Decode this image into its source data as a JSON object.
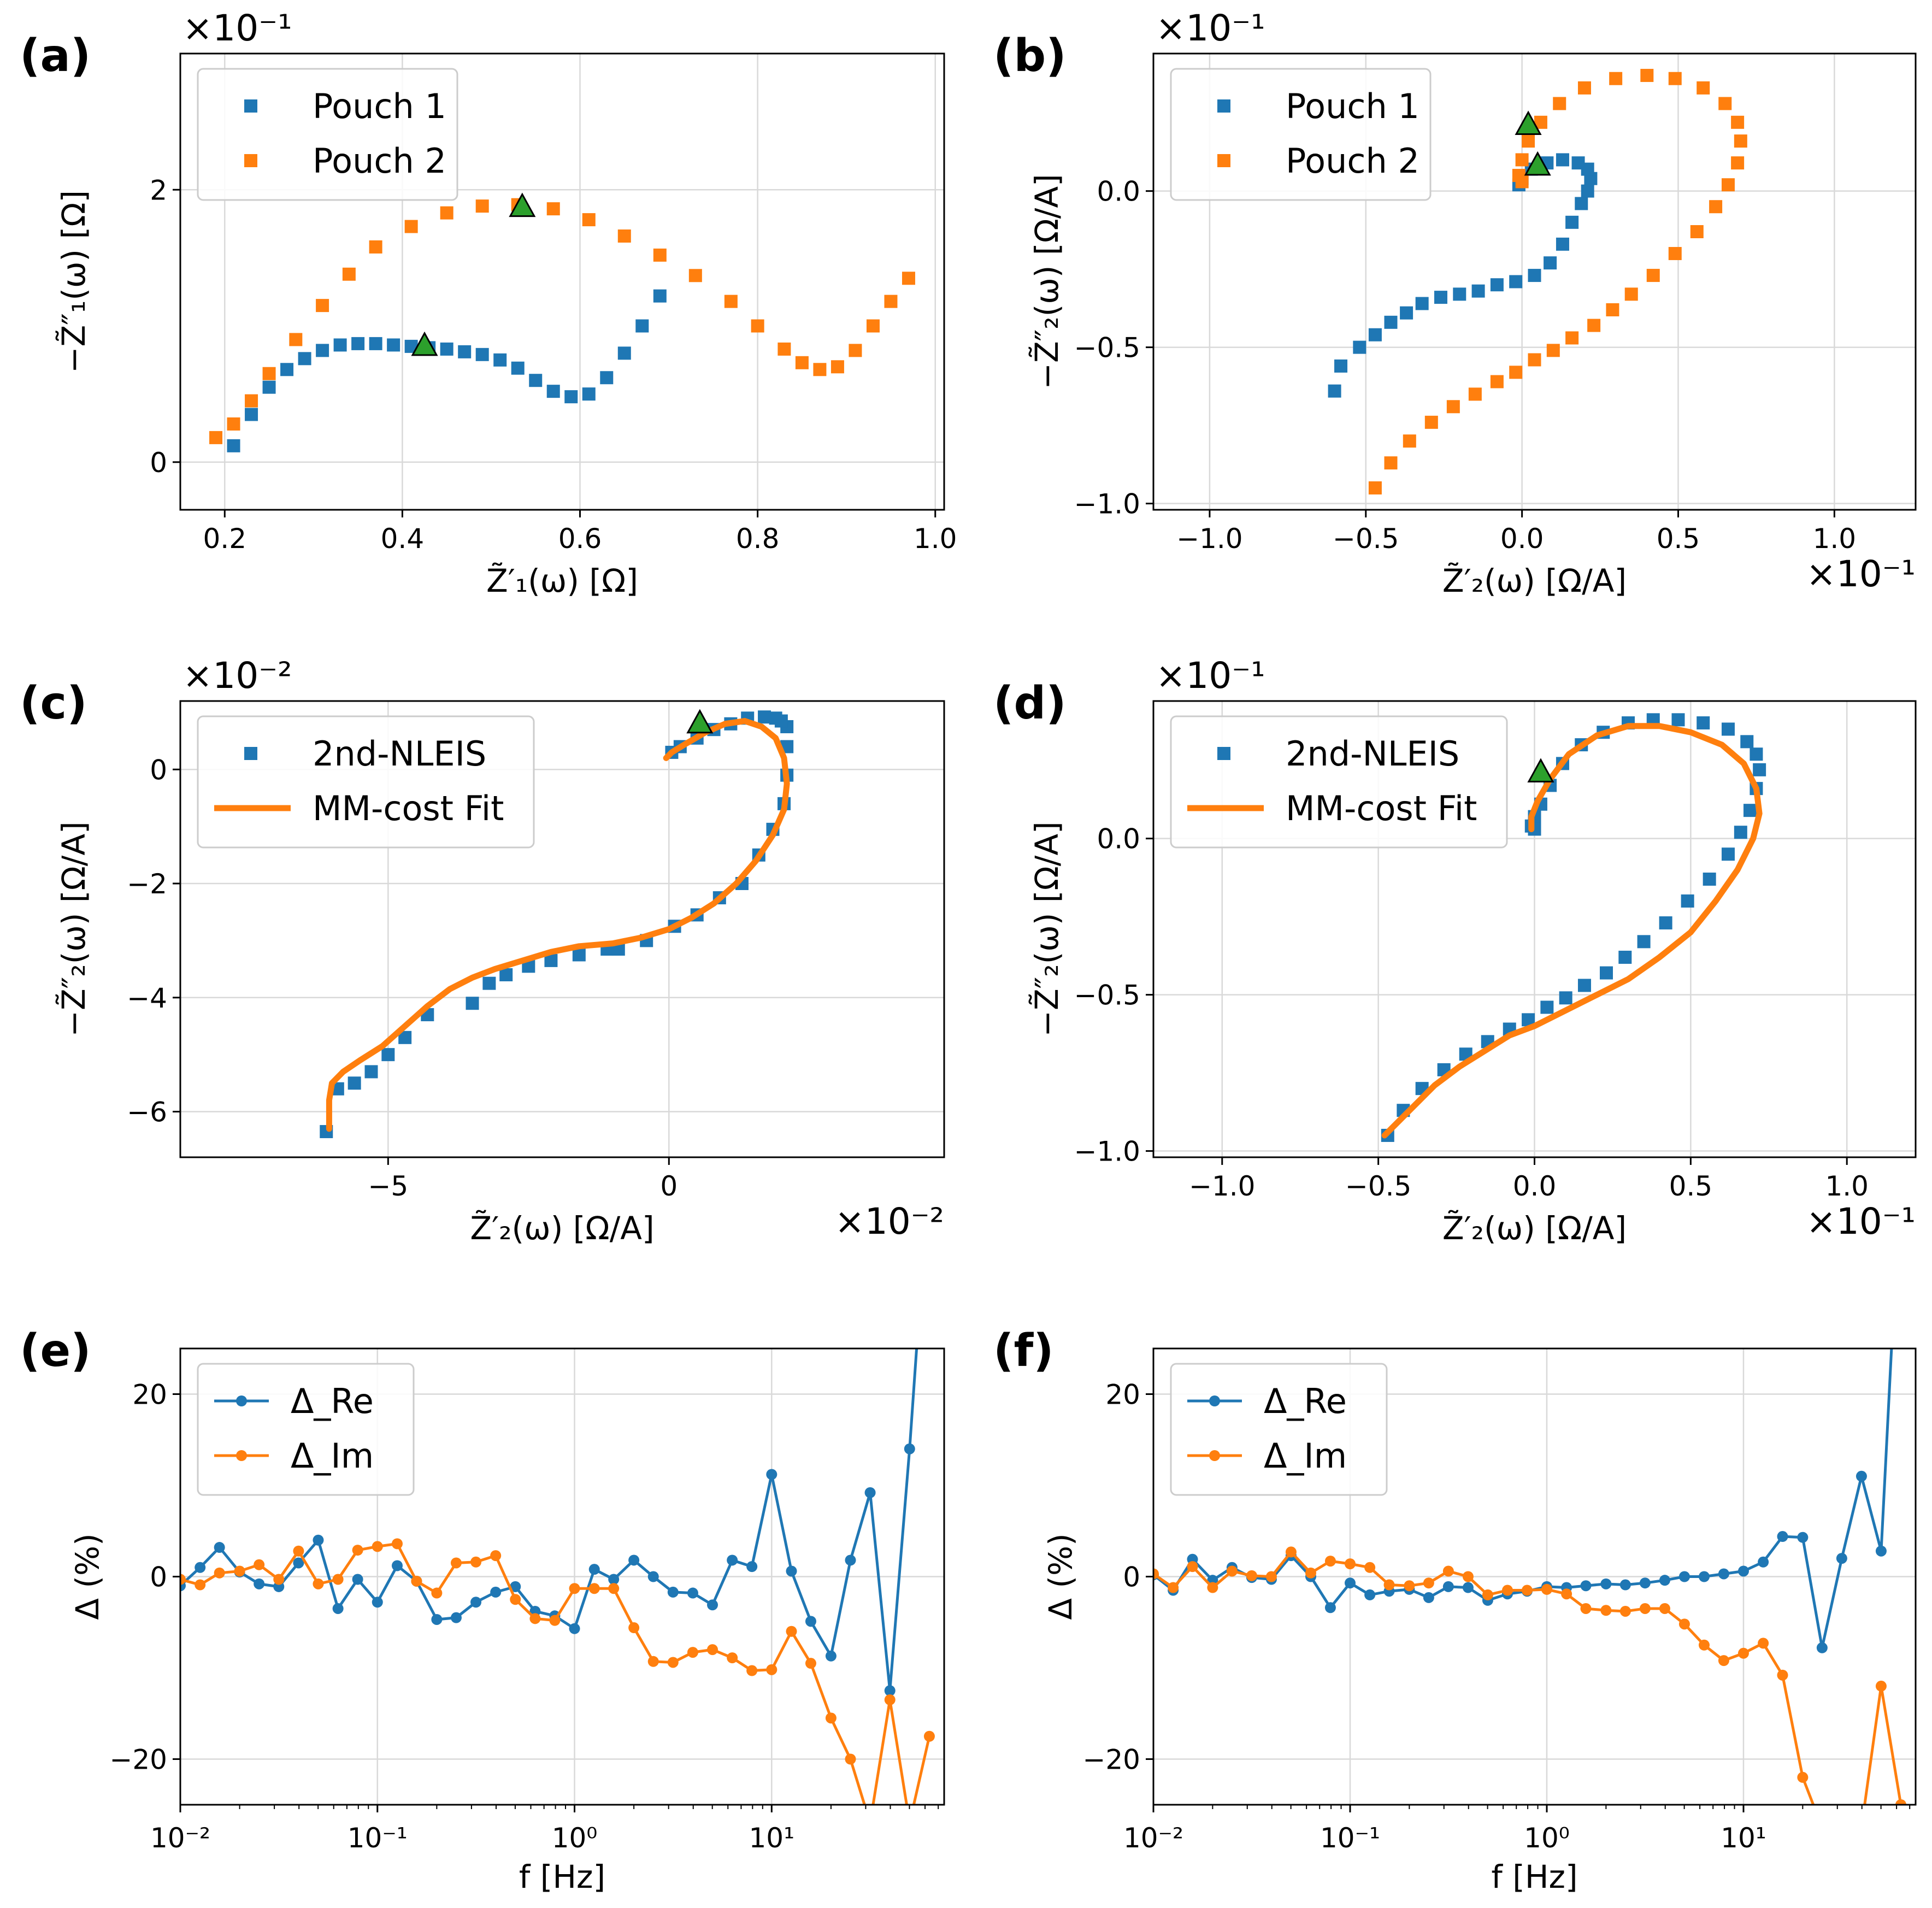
{
  "colors": {
    "blue": "#1f77b4",
    "orange": "#ff7f0e",
    "green": "#2ca02c"
  },
  "chart_data": [
    {
      "panel": "(a)",
      "type": "scatter",
      "xlabel": "Z̃′₁(ω) [Ω]",
      "ylabel": "−Z̃″₁(ω) [Ω]",
      "y_multiplier": "×10⁻¹",
      "x_multiplier": "",
      "xlim": [
        0.15,
        1.01
      ],
      "ylim": [
        -0.35,
        3.0
      ],
      "xticks": [
        0.2,
        0.4,
        0.6,
        0.8,
        1.0
      ],
      "xtick_labels": [
        "0.2",
        "0.4",
        "0.6",
        "0.8",
        "1.0"
      ],
      "yticks": [
        0,
        2
      ],
      "ytick_labels": [
        "0",
        "2"
      ],
      "grid": true,
      "legend_position": "upper left",
      "series": [
        {
          "name": "Pouch 1",
          "mark": "square",
          "color": "blue",
          "x": [
            0.21,
            0.23,
            0.25,
            0.27,
            0.29,
            0.31,
            0.33,
            0.35,
            0.37,
            0.39,
            0.41,
            0.43,
            0.45,
            0.47,
            0.49,
            0.51,
            0.53,
            0.55,
            0.57,
            0.59,
            0.61,
            0.63,
            0.65,
            0.67,
            0.69
          ],
          "y": [
            0.12,
            0.35,
            0.55,
            0.68,
            0.76,
            0.82,
            0.86,
            0.87,
            0.87,
            0.86,
            0.85,
            0.84,
            0.83,
            0.81,
            0.79,
            0.75,
            0.69,
            0.6,
            0.52,
            0.48,
            0.5,
            0.62,
            0.8,
            1.0,
            1.22
          ]
        },
        {
          "name": "Pouch 2",
          "mark": "square",
          "color": "orange",
          "x": [
            0.19,
            0.21,
            0.23,
            0.25,
            0.28,
            0.31,
            0.34,
            0.37,
            0.41,
            0.45,
            0.49,
            0.53,
            0.57,
            0.61,
            0.65,
            0.69,
            0.73,
            0.77,
            0.8,
            0.83,
            0.85,
            0.87,
            0.89,
            0.91,
            0.93,
            0.95,
            0.97
          ],
          "y": [
            0.18,
            0.28,
            0.45,
            0.65,
            0.9,
            1.15,
            1.38,
            1.58,
            1.73,
            1.83,
            1.88,
            1.89,
            1.86,
            1.78,
            1.66,
            1.52,
            1.37,
            1.18,
            1.0,
            0.83,
            0.73,
            0.68,
            0.7,
            0.82,
            1.0,
            1.18,
            1.35
          ]
        },
        {
          "name": "",
          "mark": "triangle",
          "color": "green",
          "x": [
            0.425,
            0.535
          ],
          "y": [
            0.85,
            1.87
          ]
        }
      ]
    },
    {
      "panel": "(b)",
      "type": "scatter",
      "xlabel": "Z̃′₂(ω) [Ω/A]",
      "ylabel": "−Z̃″₂(ω) [Ω/A]",
      "y_multiplier": "×10⁻¹",
      "x_multiplier": "×10⁻¹",
      "xlim": [
        -1.18,
        1.26
      ],
      "ylim": [
        -1.02,
        0.44
      ],
      "xticks": [
        -1.0,
        -0.5,
        0.0,
        0.5,
        1.0
      ],
      "xtick_labels": [
        "−1.0",
        "−0.5",
        "0.0",
        "0.5",
        "1.0"
      ],
      "yticks": [
        -1.0,
        -0.5,
        0.0
      ],
      "ytick_labels": [
        "−1.0",
        "−0.5",
        "0.0"
      ],
      "grid": true,
      "legend_position": "upper left",
      "series": [
        {
          "name": "Pouch 1",
          "mark": "square",
          "color": "blue",
          "x": [
            -0.6,
            -0.58,
            -0.52,
            -0.47,
            -0.42,
            -0.37,
            -0.32,
            -0.26,
            -0.2,
            -0.14,
            -0.08,
            -0.02,
            0.04,
            0.09,
            0.13,
            0.16,
            0.19,
            0.21,
            0.22,
            0.21,
            0.18,
            0.13,
            0.08,
            0.03,
            0.0,
            -0.01
          ],
          "y": [
            -0.64,
            -0.56,
            -0.5,
            -0.46,
            -0.42,
            -0.39,
            -0.36,
            -0.34,
            -0.33,
            -0.32,
            -0.3,
            -0.29,
            -0.27,
            -0.23,
            -0.17,
            -0.1,
            -0.04,
            0.0,
            0.04,
            0.07,
            0.09,
            0.1,
            0.09,
            0.07,
            0.04,
            0.02
          ]
        },
        {
          "name": "Pouch 2",
          "mark": "square",
          "color": "orange",
          "x": [
            -0.47,
            -0.42,
            -0.36,
            -0.29,
            -0.22,
            -0.15,
            -0.08,
            -0.02,
            0.04,
            0.1,
            0.16,
            0.23,
            0.29,
            0.35,
            0.42,
            0.49,
            0.56,
            0.62,
            0.66,
            0.69,
            0.7,
            0.69,
            0.65,
            0.58,
            0.49,
            0.4,
            0.3,
            0.2,
            0.12,
            0.06,
            0.02,
            0.0,
            -0.01,
            0.0
          ],
          "y": [
            -0.95,
            -0.87,
            -0.8,
            -0.74,
            -0.69,
            -0.65,
            -0.61,
            -0.58,
            -0.54,
            -0.51,
            -0.47,
            -0.43,
            -0.38,
            -0.33,
            -0.27,
            -0.2,
            -0.13,
            -0.05,
            0.02,
            0.09,
            0.16,
            0.22,
            0.28,
            0.33,
            0.36,
            0.37,
            0.36,
            0.33,
            0.28,
            0.22,
            0.16,
            0.1,
            0.05,
            0.03
          ]
        },
        {
          "name": "",
          "mark": "triangle",
          "color": "green",
          "x": [
            0.02,
            0.05
          ],
          "y": [
            0.21,
            0.08
          ]
        }
      ]
    },
    {
      "panel": "(c)",
      "type": "line",
      "xlabel": "Z̃′₂(ω) [Ω/A]",
      "ylabel": "−Z̃″₂(ω) [Ω/A]",
      "y_multiplier": "×10⁻²",
      "x_multiplier": "×10⁻²",
      "xlim": [
        -8.7,
        4.9
      ],
      "ylim": [
        -6.8,
        1.2
      ],
      "xticks": [
        -5,
        0
      ],
      "xtick_labels": [
        "−5",
        "0"
      ],
      "yticks": [
        -6,
        -4,
        -2,
        0
      ],
      "ytick_labels": [
        "−6",
        "−4",
        "−2",
        "0"
      ],
      "grid": true,
      "legend_position": "upper left",
      "series": [
        {
          "name": "2nd-NLEIS",
          "mark": "square",
          "color": "blue",
          "x": [
            -6.1,
            -5.9,
            -5.6,
            -5.3,
            -5.0,
            -4.7,
            -4.3,
            -3.5,
            -3.2,
            -2.9,
            -2.5,
            -2.1,
            -1.6,
            -1.1,
            -0.9,
            -0.4,
            0.1,
            0.5,
            0.9,
            1.3,
            1.6,
            1.85,
            2.05,
            2.1,
            2.1,
            2.1,
            2.0,
            1.9,
            1.7,
            1.4,
            1.1,
            0.8,
            0.5,
            0.2,
            0.05
          ],
          "y": [
            -6.35,
            -5.6,
            -5.5,
            -5.3,
            -5.0,
            -4.7,
            -4.3,
            -4.1,
            -3.75,
            -3.6,
            -3.45,
            -3.35,
            -3.25,
            -3.15,
            -3.15,
            -3.0,
            -2.75,
            -2.55,
            -2.25,
            -2.0,
            -1.5,
            -1.05,
            -0.6,
            -0.1,
            0.4,
            0.75,
            0.85,
            0.9,
            0.92,
            0.9,
            0.8,
            0.7,
            0.55,
            0.4,
            0.3
          ]
        },
        {
          "name": "MM-cost Fit",
          "mark": "line",
          "color": "orange",
          "x": [
            -6.05,
            -6.05,
            -6.0,
            -5.8,
            -5.5,
            -5.1,
            -4.7,
            -4.3,
            -3.9,
            -3.5,
            -3.1,
            -2.6,
            -2.1,
            -1.6,
            -1.0,
            -0.5,
            0.0,
            0.4,
            0.8,
            1.2,
            1.55,
            1.85,
            2.05,
            2.1,
            2.05,
            1.9,
            1.65,
            1.35,
            1.0,
            0.65,
            0.3,
            0.05,
            -0.05
          ],
          "y": [
            -6.3,
            -5.8,
            -5.5,
            -5.3,
            -5.1,
            -4.85,
            -4.5,
            -4.15,
            -3.85,
            -3.65,
            -3.5,
            -3.35,
            -3.2,
            -3.1,
            -3.05,
            -2.95,
            -2.8,
            -2.6,
            -2.35,
            -2.0,
            -1.6,
            -1.15,
            -0.7,
            -0.25,
            0.2,
            0.55,
            0.75,
            0.85,
            0.8,
            0.65,
            0.45,
            0.3,
            0.2
          ]
        },
        {
          "name": "",
          "mark": "triangle",
          "color": "green",
          "x": [
            0.55
          ],
          "y": [
            0.8
          ]
        }
      ]
    },
    {
      "panel": "(d)",
      "type": "line",
      "xlabel": "Z̃′₂(ω) [Ω/A]",
      "ylabel": "−Z̃″₂(ω) [Ω/A]",
      "y_multiplier": "×10⁻¹",
      "x_multiplier": "×10⁻¹",
      "xlim": [
        -1.22,
        1.22
      ],
      "ylim": [
        -1.02,
        0.44
      ],
      "xticks": [
        -1.0,
        -0.5,
        0.0,
        0.5,
        1.0
      ],
      "xtick_labels": [
        "−1.0",
        "−0.5",
        "0.0",
        "0.5",
        "1.0"
      ],
      "yticks": [
        -1.0,
        -0.5,
        0.0
      ],
      "ytick_labels": [
        "−1.0",
        "−0.5",
        "0.0"
      ],
      "grid": true,
      "legend_position": "upper left",
      "series": [
        {
          "name": "2nd-NLEIS",
          "mark": "square",
          "color": "blue",
          "x": [
            -0.47,
            -0.42,
            -0.36,
            -0.29,
            -0.22,
            -0.15,
            -0.08,
            -0.02,
            0.04,
            0.1,
            0.16,
            0.23,
            0.29,
            0.35,
            0.42,
            0.49,
            0.56,
            0.62,
            0.66,
            0.69,
            0.71,
            0.72,
            0.71,
            0.68,
            0.62,
            0.54,
            0.46,
            0.38,
            0.3,
            0.22,
            0.15,
            0.09,
            0.05,
            0.02,
            0.0,
            -0.01,
            0.0
          ],
          "y": [
            -0.95,
            -0.87,
            -0.8,
            -0.74,
            -0.69,
            -0.65,
            -0.61,
            -0.58,
            -0.54,
            -0.51,
            -0.47,
            -0.43,
            -0.38,
            -0.33,
            -0.27,
            -0.2,
            -0.13,
            -0.05,
            0.02,
            0.09,
            0.16,
            0.22,
            0.27,
            0.31,
            0.35,
            0.37,
            0.38,
            0.38,
            0.37,
            0.34,
            0.3,
            0.24,
            0.17,
            0.11,
            0.07,
            0.04,
            0.03
          ]
        },
        {
          "name": "MM-cost Fit",
          "mark": "line",
          "color": "orange",
          "x": [
            -0.48,
            -0.4,
            -0.32,
            -0.24,
            -0.16,
            -0.08,
            0.0,
            0.1,
            0.2,
            0.3,
            0.4,
            0.5,
            0.58,
            0.65,
            0.7,
            0.72,
            0.71,
            0.67,
            0.6,
            0.5,
            0.4,
            0.3,
            0.2,
            0.11,
            0.05,
            0.01,
            -0.01,
            -0.01
          ],
          "y": [
            -0.95,
            -0.87,
            -0.79,
            -0.73,
            -0.68,
            -0.63,
            -0.6,
            -0.55,
            -0.5,
            -0.45,
            -0.38,
            -0.3,
            -0.2,
            -0.1,
            0.0,
            0.08,
            0.16,
            0.24,
            0.3,
            0.34,
            0.36,
            0.36,
            0.33,
            0.27,
            0.19,
            0.12,
            0.07,
            0.03
          ]
        },
        {
          "name": "",
          "mark": "triangle",
          "color": "green",
          "x": [
            0.02
          ],
          "y": [
            0.21
          ]
        }
      ]
    },
    {
      "panel": "(e)",
      "type": "line",
      "xlabel": "f [Hz]",
      "ylabel": "Δ (%)",
      "xscale": "log",
      "xlim": [
        0.01,
        75
      ],
      "ylim": [
        -25,
        25
      ],
      "xticks": [
        0.01,
        0.1,
        1,
        10
      ],
      "xtick_labels": [
        "10⁻²",
        "10⁻¹",
        "10⁰",
        "10¹"
      ],
      "yticks": [
        -20,
        0,
        20
      ],
      "ytick_labels": [
        "−20",
        "0",
        "20"
      ],
      "grid": true,
      "legend_position": "upper left",
      "x": [
        0.01,
        0.0126,
        0.0158,
        0.02,
        0.0251,
        0.0316,
        0.0398,
        0.0501,
        0.0631,
        0.0794,
        0.1,
        0.126,
        0.158,
        0.2,
        0.251,
        0.316,
        0.398,
        0.501,
        0.631,
        0.794,
        1.0,
        1.26,
        1.58,
        2.0,
        2.51,
        3.16,
        3.98,
        5.01,
        6.31,
        7.94,
        10.0,
        12.6,
        15.8,
        20.0,
        25.1,
        31.6,
        39.8,
        50.1,
        63.1
      ],
      "series": [
        {
          "name": "Δ_Re",
          "color": "blue",
          "values": [
            -1.0,
            1.0,
            3.2,
            0.5,
            -0.8,
            -1.1,
            1.5,
            4.0,
            -3.5,
            -0.3,
            -2.8,
            1.2,
            -0.5,
            -4.7,
            -4.5,
            -2.8,
            -1.7,
            -1.1,
            -3.8,
            -4.3,
            -5.7,
            0.8,
            -0.3,
            1.8,
            0.0,
            -1.7,
            -1.8,
            -3.1,
            1.8,
            1.1,
            11.2,
            0.6,
            -4.9,
            -8.7,
            1.8,
            9.2,
            -12.5,
            14.0,
            45.0
          ]
        },
        {
          "name": "Δ_Im",
          "color": "orange",
          "values": [
            -0.3,
            -0.9,
            0.4,
            0.6,
            1.3,
            -0.3,
            2.8,
            -0.8,
            -0.3,
            2.9,
            3.3,
            3.6,
            -0.5,
            -1.8,
            1.5,
            1.6,
            2.3,
            -2.5,
            -4.6,
            -4.8,
            -1.3,
            -1.3,
            -1.3,
            -5.6,
            -9.3,
            -9.4,
            -8.3,
            -8.0,
            -8.9,
            -10.3,
            -10.2,
            -6.0,
            -9.5,
            -15.5,
            -20.0,
            -27.0,
            -13.5,
            -27.0,
            -17.5
          ]
        }
      ]
    },
    {
      "panel": "(f)",
      "type": "line",
      "xlabel": "f [Hz]",
      "ylabel": "Δ (%)",
      "xscale": "log",
      "xlim": [
        0.01,
        75
      ],
      "ylim": [
        -25,
        25
      ],
      "xticks": [
        0.01,
        0.1,
        1,
        10
      ],
      "xtick_labels": [
        "10⁻²",
        "10⁻¹",
        "10⁰",
        "10¹"
      ],
      "yticks": [
        -20,
        0,
        20
      ],
      "ytick_labels": [
        "−20",
        "0",
        "20"
      ],
      "grid": true,
      "legend_position": "upper left",
      "x": [
        0.01,
        0.0126,
        0.0158,
        0.02,
        0.0251,
        0.0316,
        0.0398,
        0.0501,
        0.0631,
        0.0794,
        0.1,
        0.126,
        0.158,
        0.2,
        0.251,
        0.316,
        0.398,
        0.501,
        0.631,
        0.794,
        1.0,
        1.26,
        1.58,
        2.0,
        2.51,
        3.16,
        3.98,
        5.01,
        6.31,
        7.94,
        10.0,
        12.6,
        15.8,
        20.0,
        25.1,
        31.6,
        39.8,
        50.1,
        63.1
      ],
      "series": [
        {
          "name": "Δ_Re",
          "color": "blue",
          "values": [
            0.2,
            -1.5,
            1.9,
            -0.4,
            1.0,
            -0.1,
            -0.3,
            2.3,
            0.0,
            -3.4,
            -0.7,
            -2.0,
            -1.6,
            -1.4,
            -2.3,
            -1.1,
            -1.2,
            -2.6,
            -1.9,
            -1.6,
            -1.1,
            -1.2,
            -1.0,
            -0.8,
            -0.9,
            -0.7,
            -0.4,
            0.0,
            0.0,
            0.3,
            0.6,
            1.6,
            4.4,
            4.3,
            -7.8,
            2.0,
            11.0,
            2.8,
            45.0
          ]
        },
        {
          "name": "Δ_Im",
          "color": "orange",
          "values": [
            0.3,
            -1.2,
            1.1,
            -1.2,
            0.6,
            0.1,
            0.0,
            2.7,
            0.4,
            1.7,
            1.4,
            1.0,
            -0.9,
            -1.0,
            -0.7,
            0.6,
            0.0,
            -2.0,
            -1.5,
            -1.5,
            -1.4,
            -1.9,
            -3.5,
            -3.7,
            -3.8,
            -3.5,
            -3.5,
            -5.2,
            -7.5,
            -9.2,
            -8.4,
            -7.3,
            -10.8,
            -22.0,
            -27.5,
            -27.5,
            -27.5,
            -12.0,
            -25.0
          ]
        }
      ]
    }
  ]
}
